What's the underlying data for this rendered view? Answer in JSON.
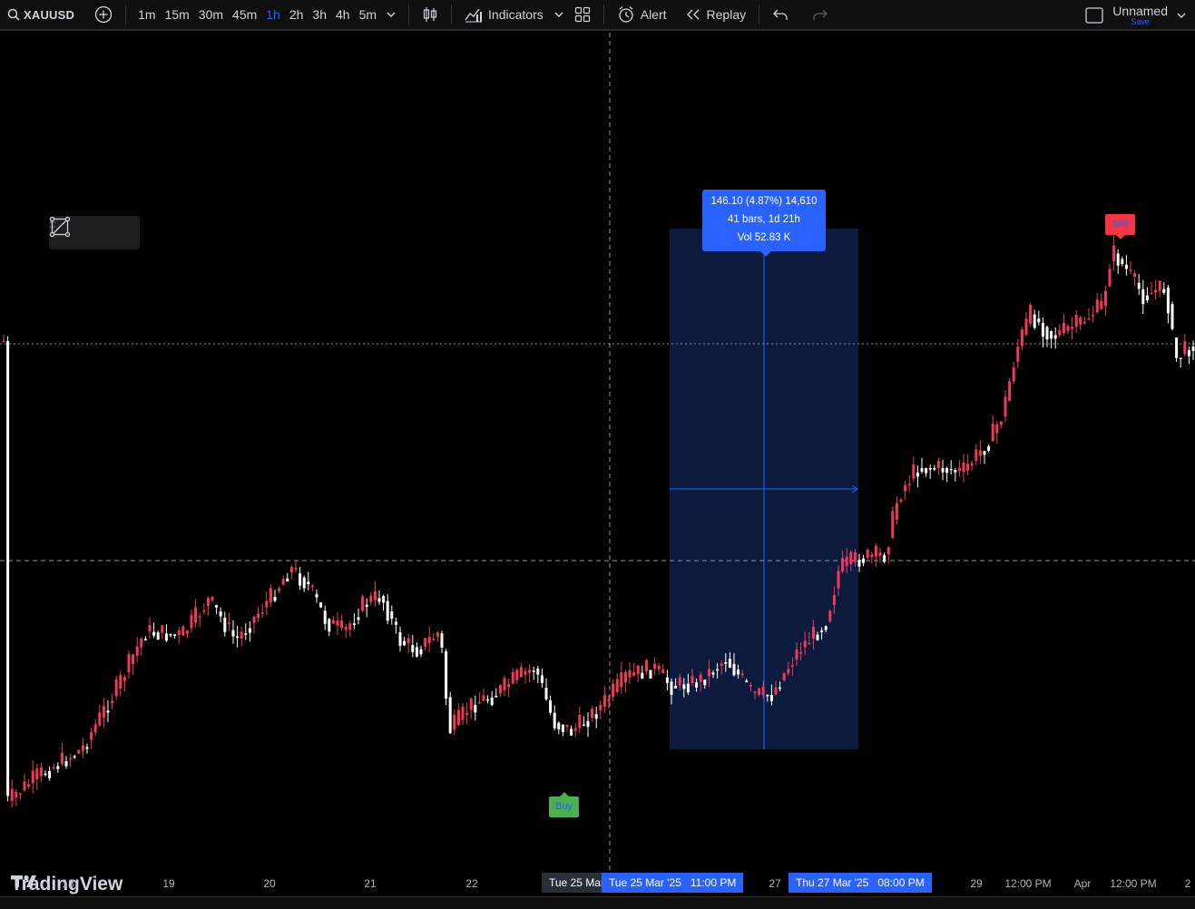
{
  "toolbar": {
    "symbol": "XAUUSD",
    "timeframes": [
      "1m",
      "15m",
      "30m",
      "45m",
      "1h",
      "2h",
      "3h",
      "4h",
      "5m"
    ],
    "active_timeframe": "1h",
    "indicators_label": "Indicators",
    "alert_label": "Alert",
    "replay_label": "Replay",
    "layout_name": "Unnamed",
    "save_label": "Save"
  },
  "measure": {
    "line1": "146.10 (4.87%) 14,610",
    "line2": "41 bars, 1d 21h",
    "line3": "Vol 52.83 K"
  },
  "signals": {
    "sell_label": "Sell",
    "buy_label": "Buy"
  },
  "logo": {
    "text": "TradingView"
  },
  "time_axis": {
    "ticks": [
      "18",
      "19",
      "20",
      "21",
      "22",
      "27",
      "29",
      "12:00 PM",
      "Apr",
      "12:00 PM",
      "2"
    ],
    "crosshair_label": "Tue 25 Mar",
    "range_start_label": "Tue 25 Mar '25   11:00 PM",
    "range_end_label": "Thu 27 Mar '25   08:00 PM"
  },
  "colors": {
    "up": "#ffffff",
    "down": "#ef3a5d",
    "accent": "#2962ff",
    "range_fill": "#0c1a3d"
  }
}
